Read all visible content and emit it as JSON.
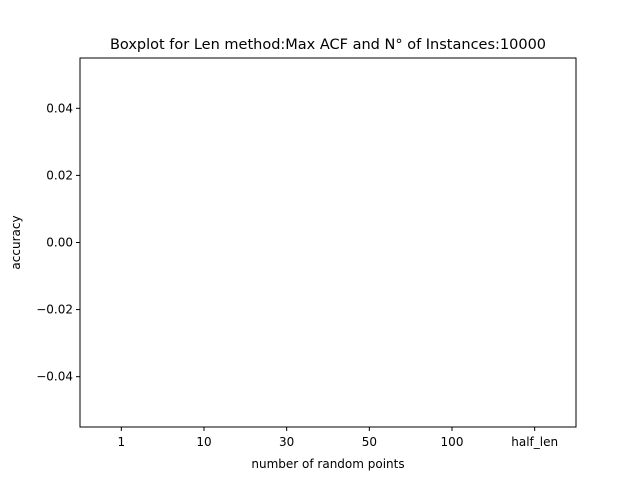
{
  "chart_data": {
    "type": "box",
    "title": "Boxplot for Len method:Max ACF and N° of Instances:10000",
    "xlabel": "number of random points",
    "ylabel": "accuracy",
    "categories": [
      "1",
      "10",
      "30",
      "50",
      "100",
      "half_len"
    ],
    "values": [],
    "ylim": [
      -0.055,
      0.055
    ],
    "yticks": [
      -0.04,
      -0.02,
      0.0,
      0.02,
      0.04
    ],
    "ytick_labels": [
      "−0.04",
      "−0.02",
      "0.00",
      "0.02",
      "0.04"
    ],
    "grid": false,
    "legend": "none"
  }
}
